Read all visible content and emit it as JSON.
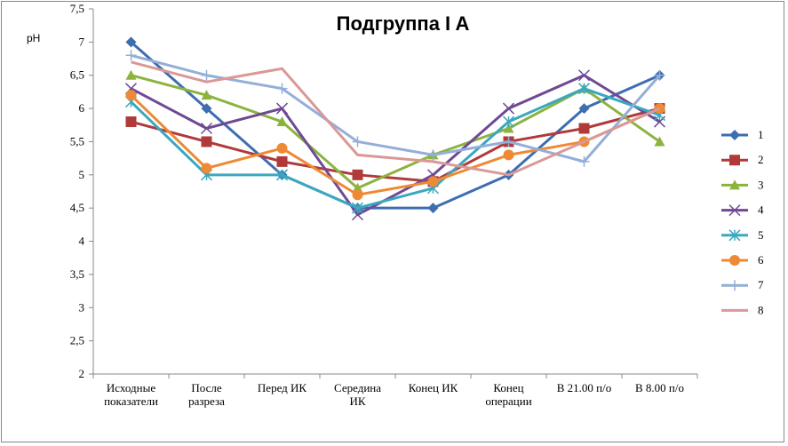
{
  "chart_data": {
    "type": "line",
    "title": "Подгруппа I A",
    "ylabel": "pH",
    "xlabel": "",
    "ylim": [
      2,
      7.5
    ],
    "yticks": [
      "2",
      "2,5",
      "3",
      "3,5",
      "4",
      "4,5",
      "5",
      "5,5",
      "6",
      "6,5",
      "7",
      "7,5"
    ],
    "grid": false,
    "legend": "right",
    "categories": [
      [
        "Исходные",
        "показатели"
      ],
      [
        "После",
        "разреза"
      ],
      [
        "Перед ИК"
      ],
      [
        "Середина",
        "ИК"
      ],
      [
        "Конец ИК"
      ],
      [
        "Конец",
        "операции"
      ],
      [
        "В 21.00 п/о"
      ],
      [
        "В 8.00 п/о"
      ]
    ],
    "series": [
      {
        "name": "1",
        "color": "#3E6DB0",
        "marker": "diamond",
        "values": [
          7,
          6,
          5,
          4.5,
          4.5,
          5,
          6,
          6.5
        ]
      },
      {
        "name": "2",
        "color": "#B03A3A",
        "marker": "square",
        "values": [
          5.8,
          5.5,
          5.2,
          5,
          4.9,
          5.5,
          5.7,
          6
        ]
      },
      {
        "name": "3",
        "color": "#8DB33F",
        "marker": "triangle",
        "values": [
          6.5,
          6.2,
          5.8,
          4.8,
          5.3,
          5.7,
          6.3,
          5.5
        ]
      },
      {
        "name": "4",
        "color": "#6F4A94",
        "marker": "x",
        "values": [
          6.3,
          5.7,
          6,
          4.4,
          5,
          6,
          6.5,
          5.8
        ]
      },
      {
        "name": "5",
        "color": "#3AA8BF",
        "marker": "star",
        "values": [
          6.1,
          5,
          5,
          4.5,
          4.8,
          5.8,
          6.3,
          5.9
        ]
      },
      {
        "name": "6",
        "color": "#EE8A35",
        "marker": "circle",
        "values": [
          6.2,
          5.1,
          5.4,
          4.7,
          4.9,
          5.3,
          5.5,
          6
        ]
      },
      {
        "name": "7",
        "color": "#93AED8",
        "marker": "plus",
        "values": [
          6.8,
          6.5,
          6.3,
          5.5,
          5.3,
          5.5,
          5.2,
          6.5
        ]
      },
      {
        "name": "8",
        "color": "#DA9896",
        "marker": "none",
        "values": [
          6.7,
          6.4,
          6.6,
          5.3,
          5.2,
          5.0,
          5.5,
          6.0
        ]
      }
    ]
  }
}
